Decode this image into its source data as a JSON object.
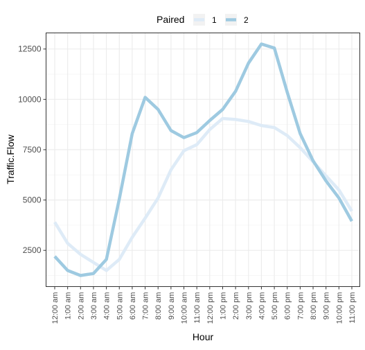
{
  "chart_data": {
    "type": "line",
    "xlabel": "Hour",
    "ylabel": "Traffic.Flow",
    "legend": {
      "title": "Paired",
      "placement": "top"
    },
    "categories": [
      "12:00 am",
      "1:00 am",
      "2:00 am",
      "3:00 am",
      "4:00 am",
      "5:00 am",
      "6:00 am",
      "7:00 am",
      "8:00 am",
      "9:00 am",
      "10:00 am",
      "11:00 am",
      "12:00 pm",
      "1:00 pm",
      "2:00 pm",
      "3:00 pm",
      "4:00 pm",
      "5:00 pm",
      "6:00 pm",
      "7:00 pm",
      "8:00 pm",
      "9:00 pm",
      "10:00 pm",
      "11:00 pm"
    ],
    "y_ticks": [
      2500,
      5000,
      7500,
      10000,
      12500
    ],
    "y_tick_labels": [
      "2500",
      "5000",
      "7500",
      "10000",
      "12500"
    ],
    "ylim": [
      700,
      13300
    ],
    "grid": true,
    "series": [
      {
        "name": "1",
        "color": "#deebf7",
        "values": [
          3900,
          2850,
          2300,
          1900,
          1500,
          2050,
          3150,
          4100,
          5100,
          6500,
          7450,
          7750,
          8500,
          9050,
          9000,
          8900,
          8700,
          8600,
          8200,
          7600,
          6900,
          6200,
          5500,
          4450
        ]
      },
      {
        "name": "2",
        "color": "#9ecae1",
        "values": [
          2200,
          1500,
          1250,
          1350,
          2050,
          5050,
          8300,
          10100,
          9500,
          8450,
          8100,
          8350,
          8950,
          9500,
          10400,
          11800,
          12750,
          12550,
          10350,
          8300,
          6950,
          5950,
          5100,
          3950
        ]
      }
    ]
  }
}
